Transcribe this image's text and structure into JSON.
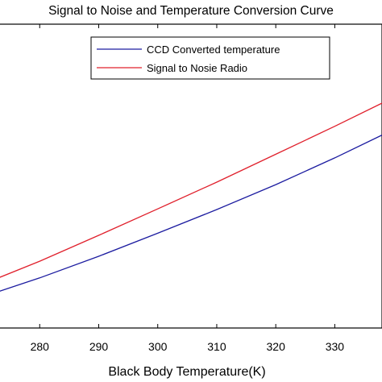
{
  "chart_data": {
    "type": "line",
    "title": "Signal to Noise and Temperature Conversion Curve",
    "xlabel": "Black Body Temperature(K)",
    "ylabel": "",
    "xlim": [
      273,
      338
    ],
    "ylim": [
      0,
      1
    ],
    "x_ticks": [
      "280",
      "290",
      "300",
      "310",
      "320",
      "330"
    ],
    "x_tick_values": [
      280,
      290,
      300,
      310,
      320,
      330
    ],
    "grid": false,
    "legend_position": "top-right",
    "series": [
      {
        "name": "CCD Converted temperature",
        "color": "#1c1ca0",
        "x": [
          273,
          280,
          290,
          300,
          310,
          320,
          330,
          338
        ],
        "y": [
          0.12,
          0.165,
          0.236,
          0.312,
          0.39,
          0.472,
          0.56,
          0.635
        ]
      },
      {
        "name": "Signal to Nosie Radio",
        "color": "#e0202c",
        "x": [
          273,
          280,
          290,
          300,
          310,
          320,
          330,
          338
        ],
        "y": [
          0.165,
          0.22,
          0.305,
          0.392,
          0.48,
          0.572,
          0.664,
          0.74
        ]
      }
    ]
  }
}
